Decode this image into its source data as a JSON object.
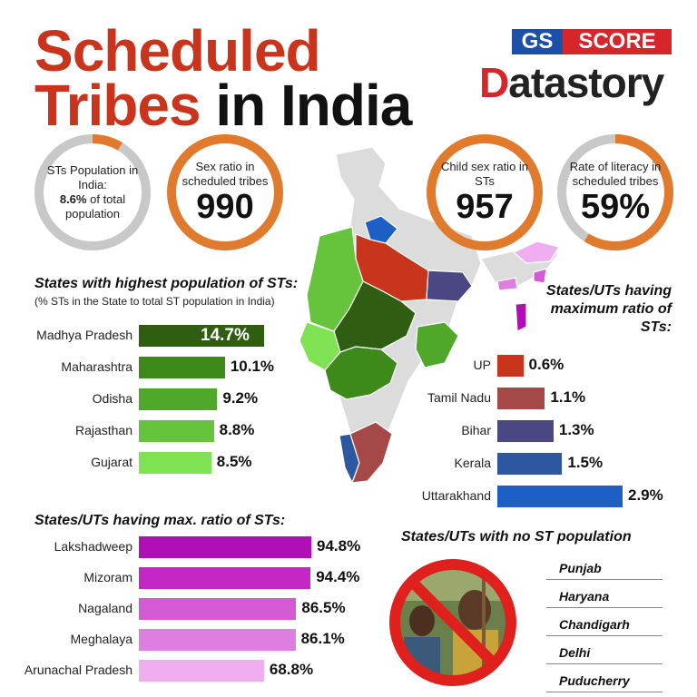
{
  "title": {
    "line1": "Scheduled",
    "line2_red": "Tribes",
    "line2_black": " in India"
  },
  "logo": {
    "gs": "GS",
    "score": "SCORE",
    "d": "D",
    "atastory": "atastory"
  },
  "circles": [
    {
      "pre": "STs Population in India:",
      "bold": "8.6%",
      "post": "of total population",
      "fraction": 0.086
    },
    {
      "pre": "Sex ratio in scheduled tribes",
      "big": "990"
    },
    {
      "pre": "Child sex ratio in STs",
      "big": "957"
    },
    {
      "pre": "Rate of literacy in scheduled tribes",
      "big": "59%",
      "fraction": 0.59
    }
  ],
  "chart_data": [
    {
      "type": "bar",
      "title": "States with highest population of STs:",
      "subtitle": "(% STs in the State to total ST population in India)",
      "categories": [
        "Madhya Pradesh",
        "Maharashtra",
        "Odisha",
        "Rajasthan",
        "Gujarat"
      ],
      "values": [
        14.7,
        10.1,
        9.2,
        8.8,
        8.5
      ],
      "labels": [
        "14.7%",
        "10.1%",
        "9.2%",
        "8.8%",
        "8.5%"
      ],
      "colors": [
        "#2f5e12",
        "#3d8a1b",
        "#4fa82a",
        "#66c43c",
        "#7ee253"
      ]
    },
    {
      "type": "bar",
      "title": "States/UTs having maximum ratio of STs:",
      "categories": [
        "UP",
        "Tamil Nadu",
        "Bihar",
        "Kerala",
        "Uttarakhand"
      ],
      "values": [
        0.6,
        1.1,
        1.3,
        1.5,
        2.9
      ],
      "labels": [
        "0.6%",
        "1.1%",
        "1.3%",
        "1.5%",
        "2.9%"
      ],
      "colors": [
        "#c9351c",
        "#a54848",
        "#4a4783",
        "#2d58a0",
        "#1d5fc4"
      ]
    },
    {
      "type": "bar",
      "title": "States/UTs having max. ratio of STs:",
      "categories": [
        "Lakshadweep",
        "Mizoram",
        "Nagaland",
        "Meghalaya",
        "Arunachal Pradesh"
      ],
      "values": [
        94.8,
        94.4,
        86.5,
        86.1,
        68.8
      ],
      "labels": [
        "94.8%",
        "94.4%",
        "86.5%",
        "86.1%",
        "68.8%"
      ],
      "colors": [
        "#b00fb8",
        "#c428c4",
        "#d45ad4",
        "#de7ede",
        "#f0aef0"
      ]
    }
  ],
  "no_st": {
    "title": "States/UTs with no ST population",
    "items": [
      "Punjab",
      "Haryana",
      "Chandigarh",
      "Delhi",
      "Puducherry"
    ]
  },
  "colors": {
    "accent": "#c9351c",
    "ring": "#e07a2c",
    "ring_bg": "#c8c8c8"
  }
}
